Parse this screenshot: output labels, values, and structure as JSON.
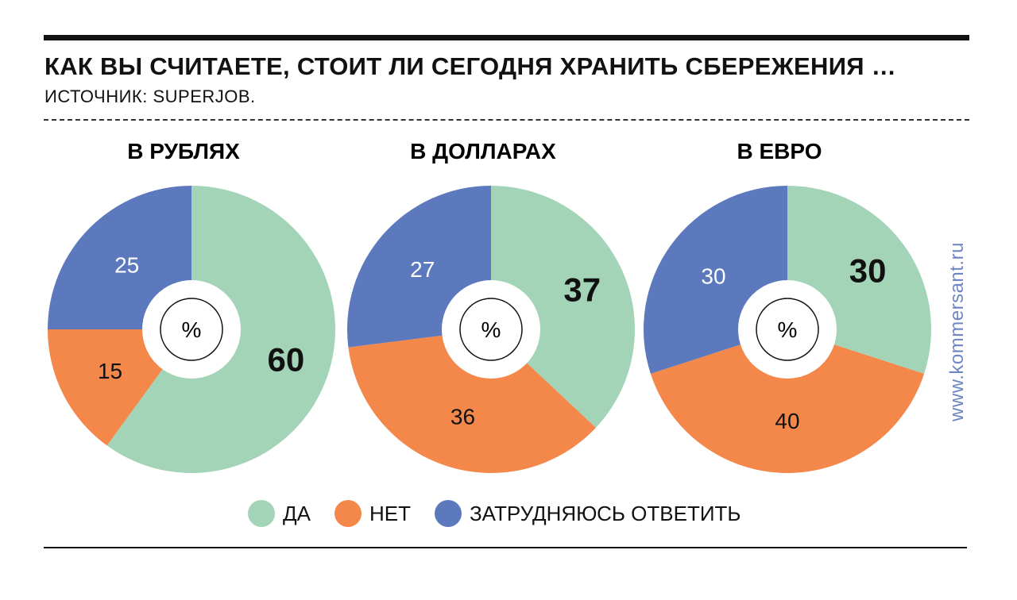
{
  "title": "КАК ВЫ СЧИТАЕТЕ, СТОИТ ЛИ СЕГОДНЯ ХРАНИТЬ СБЕРЕЖЕНИЯ …",
  "source": "ИСТОЧНИК: SUPERJOB.",
  "watermark": "www.kommersant.ru",
  "center_label": "%",
  "legend": [
    {
      "label": "ДА",
      "color": "#a3d4b7"
    },
    {
      "label": "НЕТ",
      "color": "#f4874a"
    },
    {
      "label": "ЗАТРУДНЯЮСЬ ОТВЕТИТЬ",
      "color": "#5d79bd"
    }
  ],
  "chart_data": [
    {
      "type": "pie",
      "title": "В РУБЛЯХ",
      "categories": [
        "ДА",
        "НЕТ",
        "ЗАТРУДНЯЮСЬ ОТВЕТИТЬ"
      ],
      "values": [
        60,
        15,
        25
      ],
      "unit": "%"
    },
    {
      "type": "pie",
      "title": "В ДОЛЛАРАХ",
      "categories": [
        "ДА",
        "НЕТ",
        "ЗАТРУДНЯЮСЬ ОТВЕТИТЬ"
      ],
      "values": [
        37,
        36,
        27
      ],
      "unit": "%"
    },
    {
      "type": "pie",
      "title": "В ЕВРО",
      "categories": [
        "ДА",
        "НЕТ",
        "ЗАТРУДНЯЮСЬ ОТВЕТИТЬ"
      ],
      "values": [
        30,
        40,
        30
      ],
      "unit": "%"
    }
  ]
}
